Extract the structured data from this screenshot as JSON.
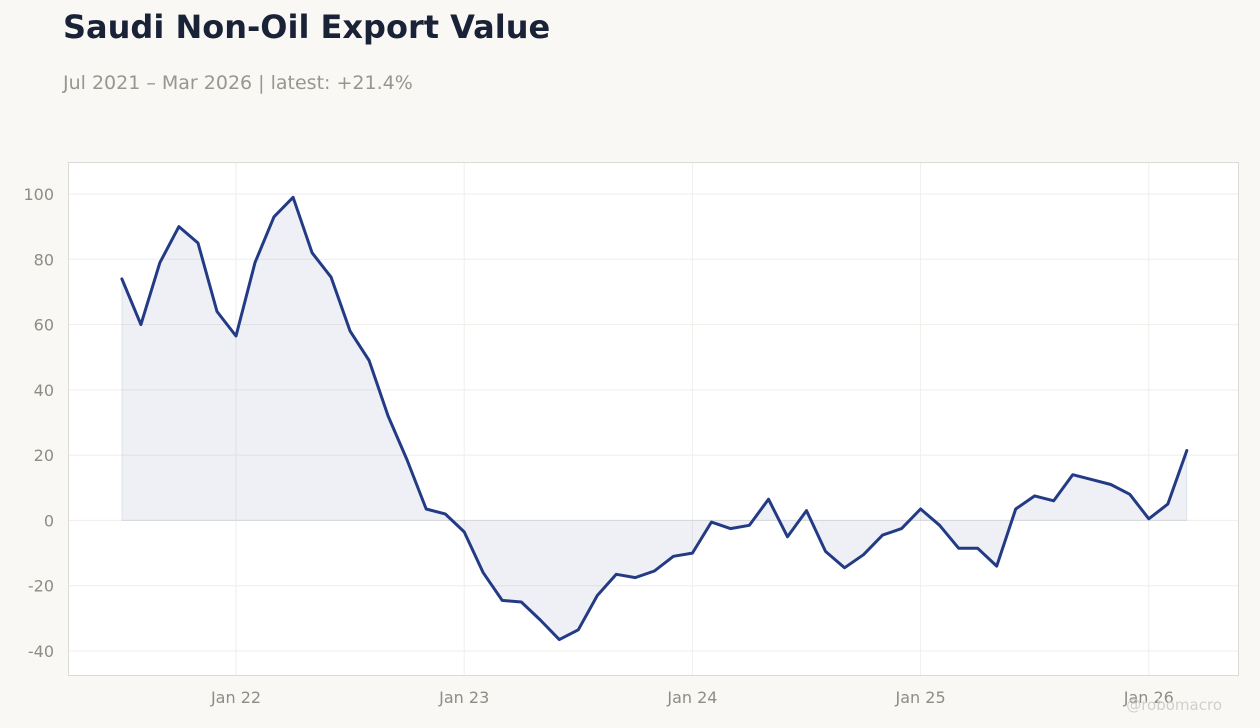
{
  "title": "Saudi Non-Oil Export Value",
  "subtitle": "Jul 2021 – Mar 2026 | latest: +21.4%",
  "watermark": "@robomacro",
  "colors": {
    "line": "#233a85",
    "area": "rgba(35,58,133,0.08)",
    "background": "#f9f8f5",
    "plot_background": "#ffffff",
    "grid": "#efeeea",
    "text_muted": "#8f8c86",
    "title": "#1a2238"
  },
  "chart_data": {
    "type": "area",
    "title": "Saudi Non-Oil Export Value",
    "subtitle": "Jul 2021 – Mar 2026 | latest: +21.4%",
    "xlabel": "",
    "ylabel": "",
    "ylim": [
      -40,
      100
    ],
    "xlim": [
      "2021-04",
      "2026-06"
    ],
    "yticks": [
      -40,
      -20,
      0,
      20,
      40,
      60,
      80,
      100
    ],
    "xticks": [
      {
        "date": "2022-01",
        "label": "Jan 22"
      },
      {
        "date": "2023-01",
        "label": "Jan 23"
      },
      {
        "date": "2024-01",
        "label": "Jan 24"
      },
      {
        "date": "2025-01",
        "label": "Jan 25"
      },
      {
        "date": "2026-01",
        "label": "Jan 26"
      }
    ],
    "grid": true,
    "legend": "none",
    "series": [
      {
        "x": [
          "2021-07",
          "2021-08",
          "2021-09",
          "2021-10",
          "2021-11",
          "2021-12",
          "2022-01",
          "2022-02",
          "2022-03",
          "2022-04",
          "2022-05",
          "2022-06",
          "2022-07",
          "2022-08",
          "2022-09",
          "2022-10",
          "2022-11",
          "2022-12",
          "2023-01",
          "2023-02",
          "2023-03",
          "2023-04",
          "2023-05",
          "2023-06",
          "2023-07",
          "2023-08",
          "2023-09",
          "2023-10",
          "2023-11",
          "2023-12",
          "2024-01",
          "2024-02",
          "2024-03",
          "2024-04",
          "2024-05",
          "2024-06",
          "2024-07",
          "2024-08",
          "2024-09",
          "2024-10",
          "2024-11",
          "2024-12",
          "2025-01",
          "2025-02",
          "2025-03",
          "2025-04",
          "2025-05",
          "2025-06",
          "2025-07",
          "2025-08",
          "2025-09",
          "2025-10",
          "2025-11",
          "2025-12",
          "2026-01",
          "2026-02",
          "2026-03"
        ],
        "values": [
          74,
          60,
          79,
          90,
          85,
          64,
          56.5,
          79,
          93,
          99,
          82,
          74.5,
          58,
          49,
          32,
          18.5,
          3.5,
          2,
          -3.5,
          -16,
          -24.5,
          -25,
          -30.5,
          -36.5,
          -33.5,
          -23,
          -16.5,
          -17.5,
          -15.5,
          -11,
          -10,
          -0.5,
          -2.5,
          -1.5,
          6.5,
          -5,
          3,
          -9.5,
          -14.5,
          -10.5,
          -4.5,
          -2.5,
          3.5,
          -1.5,
          -8.5,
          -8.5,
          -14,
          3.5,
          7.5,
          6,
          14,
          12.5,
          11,
          8,
          0.5,
          5,
          21.4
        ]
      }
    ]
  }
}
